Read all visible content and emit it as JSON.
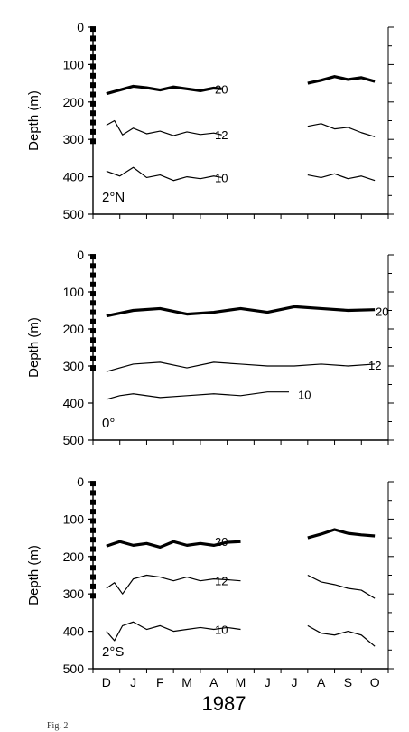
{
  "chart_data": [
    {
      "type": "line",
      "panel_label": "2°N",
      "ylabel": "Depth (m)",
      "ylim": [
        500,
        0
      ],
      "y_ticks": [
        0,
        100,
        200,
        300,
        400,
        500
      ],
      "x_ticks": [
        "D",
        "J",
        "F",
        "M",
        "A",
        "M",
        "J",
        "J",
        "A",
        "S",
        "O"
      ],
      "isotherm_labels": [
        "20",
        "12",
        "10"
      ],
      "series": [
        {
          "name": "20",
          "style": "bold",
          "segments": [
            {
              "x": [
                0.0,
                0.5,
                1.0,
                1.5,
                2.0,
                2.5,
                3.0,
                3.5,
                4.0,
                4.3
              ],
              "y": [
                178,
                168,
                158,
                162,
                168,
                160,
                165,
                170,
                163,
                165
              ]
            },
            {
              "x": [
                7.5,
                8.0,
                8.5,
                9.0,
                9.5,
                10.0
              ],
              "y": [
                150,
                142,
                132,
                140,
                135,
                145
              ]
            }
          ]
        },
        {
          "name": "12",
          "style": "normal",
          "segments": [
            {
              "x": [
                0.0,
                0.3,
                0.6,
                1.0,
                1.5,
                2.0,
                2.5,
                3.0,
                3.5,
                4.0,
                4.3
              ],
              "y": [
                262,
                250,
                288,
                270,
                285,
                278,
                290,
                280,
                287,
                283,
                288
              ]
            },
            {
              "x": [
                7.5,
                8.0,
                8.5,
                9.0,
                9.5,
                10.0
              ],
              "y": [
                265,
                258,
                272,
                268,
                282,
                293
              ]
            }
          ]
        },
        {
          "name": "10",
          "style": "normal",
          "segments": [
            {
              "x": [
                0.0,
                0.5,
                1.0,
                1.5,
                2.0,
                2.5,
                3.0,
                3.5,
                4.0,
                4.3
              ],
              "y": [
                385,
                398,
                375,
                402,
                395,
                410,
                400,
                405,
                398,
                402
              ]
            },
            {
              "x": [
                7.5,
                8.0,
                8.5,
                9.0,
                9.5,
                10.0
              ],
              "y": [
                395,
                402,
                392,
                405,
                398,
                410
              ]
            }
          ]
        }
      ]
    },
    {
      "type": "line",
      "panel_label": "0°",
      "ylabel": "Depth (m)",
      "ylim": [
        500,
        0
      ],
      "y_ticks": [
        0,
        100,
        200,
        300,
        400,
        500
      ],
      "x_ticks": [
        "D",
        "J",
        "F",
        "M",
        "A",
        "M",
        "J",
        "J",
        "A",
        "S",
        "O"
      ],
      "isotherm_labels": [
        "20",
        "12",
        "10"
      ],
      "series": [
        {
          "name": "20",
          "style": "bold",
          "segments": [
            {
              "x": [
                0.0,
                1.0,
                2.0,
                3.0,
                4.0,
                5.0,
                6.0,
                7.0,
                8.0,
                9.0,
                10.0
              ],
              "y": [
                165,
                150,
                145,
                160,
                155,
                145,
                155,
                140,
                145,
                150,
                148
              ]
            }
          ]
        },
        {
          "name": "12",
          "style": "normal",
          "segments": [
            {
              "x": [
                0.0,
                1.0,
                2.0,
                3.0,
                4.0,
                5.0,
                6.0,
                7.0,
                8.0,
                9.0,
                10.0
              ],
              "y": [
                315,
                295,
                290,
                305,
                290,
                295,
                300,
                300,
                295,
                300,
                295
              ]
            }
          ]
        },
        {
          "name": "10",
          "style": "normal",
          "segments": [
            {
              "x": [
                0.0,
                0.5,
                1.0,
                2.0,
                3.0,
                4.0,
                5.0,
                6.0,
                6.8
              ],
              "y": [
                390,
                380,
                375,
                385,
                380,
                375,
                380,
                370,
                370
              ]
            }
          ]
        }
      ]
    },
    {
      "type": "line",
      "panel_label": "2°S",
      "ylabel": "Depth (m)",
      "ylim": [
        500,
        0
      ],
      "y_ticks": [
        0,
        100,
        200,
        300,
        400,
        500
      ],
      "x_ticks": [
        "D",
        "J",
        "F",
        "M",
        "A",
        "M",
        "J",
        "J",
        "A",
        "S",
        "O"
      ],
      "isotherm_labels": [
        "20",
        "12",
        "10"
      ],
      "series": [
        {
          "name": "20",
          "style": "bold",
          "segments": [
            {
              "x": [
                0.0,
                0.5,
                1.0,
                1.5,
                2.0,
                2.5,
                3.0,
                3.5,
                4.0,
                4.5,
                5.0
              ],
              "y": [
                172,
                160,
                170,
                165,
                175,
                160,
                170,
                165,
                170,
                162,
                160
              ]
            },
            {
              "x": [
                7.5,
                8.0,
                8.5,
                9.0,
                9.5,
                10.0
              ],
              "y": [
                150,
                140,
                128,
                138,
                142,
                145
              ]
            }
          ]
        },
        {
          "name": "12",
          "style": "normal",
          "segments": [
            {
              "x": [
                0.0,
                0.3,
                0.6,
                1.0,
                1.5,
                2.0,
                2.5,
                3.0,
                3.5,
                4.0,
                4.5,
                5.0
              ],
              "y": [
                285,
                270,
                300,
                260,
                250,
                255,
                265,
                255,
                265,
                260,
                262,
                265
              ]
            },
            {
              "x": [
                7.5,
                8.0,
                8.5,
                9.0,
                9.5,
                10.0
              ],
              "y": [
                250,
                268,
                275,
                285,
                290,
                312
              ]
            }
          ]
        },
        {
          "name": "10",
          "style": "normal",
          "segments": [
            {
              "x": [
                0.0,
                0.3,
                0.6,
                1.0,
                1.5,
                2.0,
                2.5,
                3.0,
                3.5,
                4.0,
                4.5,
                5.0
              ],
              "y": [
                400,
                425,
                385,
                375,
                395,
                385,
                400,
                395,
                390,
                395,
                390,
                395
              ]
            },
            {
              "x": [
                7.5,
                8.0,
                8.5,
                9.0,
                9.5,
                10.0
              ],
              "y": [
                385,
                405,
                410,
                400,
                410,
                440
              ]
            }
          ]
        }
      ]
    }
  ],
  "xlabel_year": "1987",
  "caption_fragment": "Fig. 2"
}
